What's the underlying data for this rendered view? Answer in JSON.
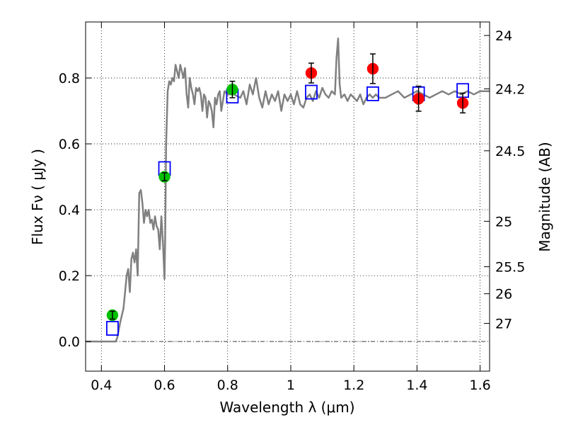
{
  "chart_data": {
    "type": "scatter",
    "xlabel": "Wavelength  λ (μm)",
    "ylabel": "Flux  Fν  ( μJy )",
    "y2label": "Magnitude (AB)",
    "xlim": [
      0.35,
      1.63
    ],
    "ylim": [
      -0.09,
      0.97
    ],
    "grid": true,
    "x_ticks": [
      {
        "value": 0.4,
        "label": "0.4"
      },
      {
        "value": 0.6,
        "label": "0.6"
      },
      {
        "value": 0.8,
        "label": "0.8"
      },
      {
        "value": 1.0,
        "label": "1"
      },
      {
        "value": 1.2,
        "label": "1.2"
      },
      {
        "value": 1.4,
        "label": "1.4"
      },
      {
        "value": 1.6,
        "label": "1.6"
      }
    ],
    "y_ticks": [
      {
        "value": 0.0,
        "label": "0.0"
      },
      {
        "value": 0.2,
        "label": "0.2"
      },
      {
        "value": 0.4,
        "label": "0.4"
      },
      {
        "value": 0.6,
        "label": "0.6"
      },
      {
        "value": 0.8,
        "label": "0.8"
      }
    ],
    "y2_ticks": [
      {
        "flux": 0.929,
        "label": "24"
      },
      {
        "flux": 0.767,
        "label": "24.2"
      },
      {
        "flux": 0.579,
        "label": "24.5"
      },
      {
        "flux": 0.365,
        "label": "25"
      },
      {
        "flux": 0.227,
        "label": "25.5"
      },
      {
        "flux": 0.145,
        "label": "26"
      },
      {
        "flux": 0.055,
        "label": "27"
      }
    ],
    "model_spectrum": {
      "color": "#808080",
      "x": [
        0.35,
        0.44,
        0.445,
        0.45,
        0.46,
        0.47,
        0.475,
        0.48,
        0.485,
        0.49,
        0.495,
        0.5,
        0.505,
        0.51,
        0.515,
        0.52,
        0.525,
        0.53,
        0.535,
        0.54,
        0.545,
        0.55,
        0.555,
        0.56,
        0.565,
        0.57,
        0.575,
        0.58,
        0.585,
        0.59,
        0.595,
        0.6,
        0.602,
        0.605,
        0.61,
        0.615,
        0.62,
        0.625,
        0.63,
        0.635,
        0.64,
        0.645,
        0.65,
        0.655,
        0.66,
        0.665,
        0.67,
        0.675,
        0.68,
        0.685,
        0.69,
        0.695,
        0.7,
        0.705,
        0.71,
        0.715,
        0.72,
        0.725,
        0.73,
        0.735,
        0.74,
        0.745,
        0.75,
        0.755,
        0.76,
        0.765,
        0.77,
        0.775,
        0.78,
        0.79,
        0.8,
        0.82,
        0.84,
        0.85,
        0.86,
        0.87,
        0.88,
        0.89,
        0.9,
        0.91,
        0.92,
        0.93,
        0.94,
        0.95,
        0.96,
        0.97,
        0.98,
        0.99,
        1.0,
        1.01,
        1.02,
        1.03,
        1.04,
        1.05,
        1.06,
        1.07,
        1.08,
        1.09,
        1.1,
        1.11,
        1.12,
        1.13,
        1.14,
        1.145,
        1.15,
        1.155,
        1.16,
        1.17,
        1.18,
        1.19,
        1.2,
        1.21,
        1.22,
        1.23,
        1.24,
        1.25,
        1.26,
        1.27,
        1.28,
        1.3,
        1.32,
        1.34,
        1.36,
        1.38,
        1.4,
        1.42,
        1.44,
        1.46,
        1.48,
        1.5,
        1.52,
        1.54,
        1.56,
        1.58,
        1.6,
        1.63
      ],
      "y": [
        0.0,
        0.0,
        0.0,
        0.01,
        0.06,
        0.1,
        0.15,
        0.2,
        0.22,
        0.15,
        0.25,
        0.27,
        0.24,
        0.28,
        0.2,
        0.45,
        0.46,
        0.42,
        0.36,
        0.4,
        0.38,
        0.4,
        0.36,
        0.37,
        0.34,
        0.38,
        0.35,
        0.34,
        0.28,
        0.38,
        0.3,
        0.19,
        0.3,
        0.6,
        0.76,
        0.79,
        0.78,
        0.8,
        0.79,
        0.84,
        0.82,
        0.8,
        0.84,
        0.82,
        0.8,
        0.83,
        0.75,
        0.71,
        0.8,
        0.77,
        0.75,
        0.72,
        0.77,
        0.76,
        0.77,
        0.75,
        0.7,
        0.75,
        0.74,
        0.68,
        0.73,
        0.72,
        0.7,
        0.65,
        0.74,
        0.72,
        0.75,
        0.76,
        0.7,
        0.76,
        0.75,
        0.75,
        0.74,
        0.76,
        0.72,
        0.78,
        0.75,
        0.8,
        0.74,
        0.71,
        0.76,
        0.72,
        0.75,
        0.73,
        0.76,
        0.7,
        0.75,
        0.73,
        0.75,
        0.72,
        0.76,
        0.72,
        0.71,
        0.74,
        0.75,
        0.73,
        0.76,
        0.74,
        0.77,
        0.75,
        0.74,
        0.76,
        0.75,
        0.86,
        0.92,
        0.78,
        0.74,
        0.75,
        0.73,
        0.75,
        0.74,
        0.73,
        0.75,
        0.72,
        0.74,
        0.75,
        0.74,
        0.75,
        0.74,
        0.74,
        0.75,
        0.76,
        0.74,
        0.75,
        0.76,
        0.75,
        0.74,
        0.75,
        0.76,
        0.75,
        0.76,
        0.75,
        0.76,
        0.75,
        0.76,
        0.76
      ]
    },
    "series": [
      {
        "marker": "open-square",
        "color": "#0000ff",
        "x": [
          0.435,
          0.6,
          0.815,
          1.065,
          1.26,
          1.405,
          1.545
        ],
        "y": [
          0.04,
          0.525,
          0.745,
          0.757,
          0.752,
          0.752,
          0.762
        ]
      },
      {
        "marker": "filled-circle",
        "color": "#00c000",
        "x": [
          0.435,
          0.6,
          0.815
        ],
        "y": [
          0.08,
          0.5,
          0.765
        ],
        "yerr": [
          0.012,
          0.012,
          0.025
        ]
      },
      {
        "marker": "filled-circle",
        "color": "#ff0000",
        "x": [
          1.065,
          1.26,
          1.405,
          1.545
        ],
        "y": [
          0.815,
          0.828,
          0.737,
          0.724
        ],
        "yerr": [
          0.03,
          0.045,
          0.038,
          0.03
        ]
      }
    ],
    "reference_line": {
      "y": 0.0,
      "style": "dash-dot",
      "color": "#404040"
    }
  }
}
